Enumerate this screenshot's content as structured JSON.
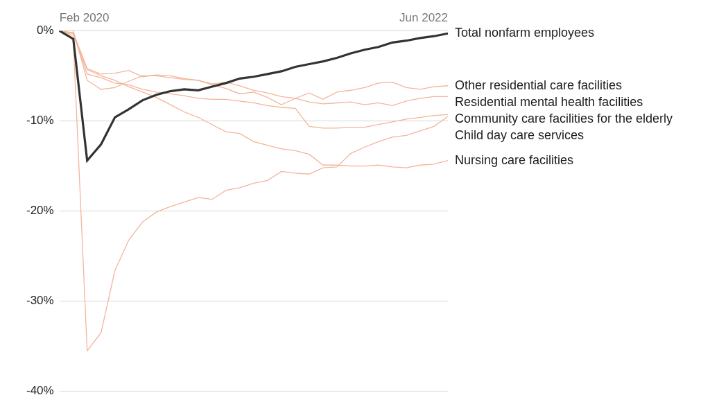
{
  "chart_data": {
    "type": "line",
    "categories": [
      "Feb 2020",
      null,
      null,
      null,
      null,
      null,
      null,
      null,
      null,
      null,
      null,
      null,
      null,
      null,
      null,
      null,
      null,
      null,
      null,
      null,
      null,
      null,
      null,
      null,
      null,
      null,
      null,
      null,
      "Jun 2022"
    ],
    "series": [
      {
        "name": "Total nonfarm employees",
        "color": "#333333",
        "values": [
          0,
          -0.9,
          -14.4,
          -12.6,
          -9.6,
          -8.7,
          -7.7,
          -7.1,
          -6.7,
          -6.5,
          -6.6,
          -6.2,
          -5.8,
          -5.3,
          -5.1,
          -4.8,
          -4.5,
          -4.0,
          -3.7,
          -3.4,
          -3.0,
          -2.5,
          -2.1,
          -1.8,
          -1.3,
          -1.1,
          -0.8,
          -0.6,
          -0.3
        ]
      },
      {
        "name": "Other residential care facilities",
        "color": "#f4b49a",
        "values": [
          0,
          0,
          -5.5,
          -6.5,
          -6.3,
          -5.6,
          -5.0,
          -5.0,
          -5.2,
          -5.4,
          -5.5,
          -6.0,
          -6.4,
          -7.0,
          -6.8,
          -7.4,
          -8.2,
          -7.5,
          -6.9,
          -7.6,
          -6.8,
          -6.6,
          -6.3,
          -5.8,
          -5.7,
          -6.3,
          -6.5,
          -6.2,
          -6.1
        ]
      },
      {
        "name": "Residential mental health facilities",
        "color": "#f4b49a",
        "values": [
          0,
          -0.2,
          -4.2,
          -4.8,
          -4.7,
          -4.4,
          -5.1,
          -4.9,
          -5.0,
          -5.3,
          -5.5,
          -5.9,
          -5.7,
          -6.1,
          -6.6,
          -6.9,
          -7.3,
          -7.5,
          -7.9,
          -8.1,
          -8.0,
          -7.9,
          -8.2,
          -8.0,
          -8.3,
          -7.8,
          -7.5,
          -7.3,
          -7.3
        ]
      },
      {
        "name": "Community care facilities for the elderly",
        "color": "#f4b49a",
        "values": [
          0,
          -0.3,
          -4.8,
          -5.2,
          -5.8,
          -6.0,
          -6.5,
          -6.8,
          -7.0,
          -7.2,
          -7.5,
          -7.6,
          -7.6,
          -7.8,
          -8.0,
          -8.3,
          -8.5,
          -8.6,
          -10.6,
          -10.8,
          -10.8,
          -10.7,
          -10.7,
          -10.4,
          -10.1,
          -9.8,
          -9.6,
          -9.4,
          -9.3
        ]
      },
      {
        "name": "Child day care services",
        "color": "#f4b49a",
        "values": [
          0,
          -1.0,
          -35.5,
          -33.5,
          -26.6,
          -23.2,
          -21.2,
          -20.1,
          -19.5,
          -19.0,
          -18.5,
          -18.7,
          -17.7,
          -17.4,
          -16.9,
          -16.6,
          -15.6,
          -15.8,
          -15.9,
          -15.2,
          -15.1,
          -13.6,
          -12.9,
          -12.3,
          -11.8,
          -11.6,
          -11.1,
          -10.6,
          -9.5
        ]
      },
      {
        "name": "Nursing care facilities",
        "color": "#f4b49a",
        "values": [
          0,
          -0.5,
          -4.3,
          -5.0,
          -5.5,
          -6.2,
          -6.8,
          -7.4,
          -8.2,
          -9.0,
          -9.6,
          -10.4,
          -11.2,
          -11.4,
          -12.3,
          -12.7,
          -13.1,
          -13.3,
          -13.7,
          -14.9,
          -14.9,
          -15.0,
          -15.0,
          -14.9,
          -15.1,
          -15.2,
          -14.9,
          -14.8,
          -14.4
        ]
      }
    ],
    "ylim": [
      -40,
      0
    ],
    "yticks": [
      {
        "value": 0,
        "label": "0%"
      },
      {
        "value": -10,
        "label": "-10%"
      },
      {
        "value": -20,
        "label": "-20%"
      },
      {
        "value": -30,
        "label": "-30%"
      },
      {
        "value": -40,
        "label": "-40%"
      }
    ],
    "grid": true
  }
}
